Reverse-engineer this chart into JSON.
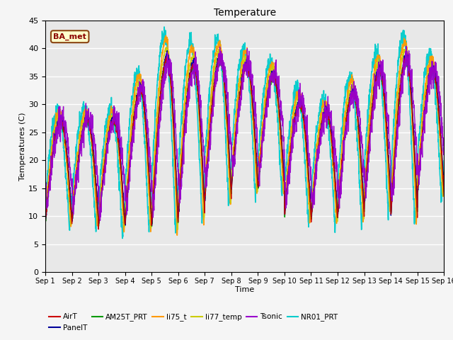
{
  "title": "Temperature",
  "xlabel": "Time",
  "ylabel": "Temperatures (C)",
  "xlim": [
    0,
    15
  ],
  "ylim": [
    0,
    45
  ],
  "yticks": [
    0,
    5,
    10,
    15,
    20,
    25,
    30,
    35,
    40,
    45
  ],
  "xtick_labels": [
    "Sep 1",
    "Sep 2",
    "Sep 3",
    "Sep 4",
    "Sep 5",
    "Sep 6",
    "Sep 7",
    "Sep 8",
    "Sep 9",
    "Sep 10",
    "Sep 11",
    "Sep 12",
    "Sep 13",
    "Sep 14",
    "Sep 15",
    "Sep 16"
  ],
  "series": {
    "AirT": {
      "color": "#cc0000",
      "lw": 1.0
    },
    "PanelT": {
      "color": "#000099",
      "lw": 1.0
    },
    "AM25T_PRT": {
      "color": "#009900",
      "lw": 1.0
    },
    "li75_t": {
      "color": "#ff9900",
      "lw": 1.2
    },
    "li77_temp": {
      "color": "#cccc00",
      "lw": 1.0
    },
    "Tsonic": {
      "color": "#9900cc",
      "lw": 1.0
    },
    "NR01_PRT": {
      "color": "#00cccc",
      "lw": 1.2
    }
  },
  "annotation_text": "BA_met",
  "background_color": "#e8e8e8",
  "grid_color": "#ffffff",
  "amp_pattern": [
    18,
    18,
    19,
    24,
    30,
    27,
    25,
    22,
    20,
    20,
    19,
    22,
    24,
    28,
    22
  ],
  "min_pattern": [
    9,
    9,
    8,
    8.5,
    8,
    10,
    13,
    15,
    15,
    10,
    9.5,
    10,
    12,
    10,
    14
  ]
}
